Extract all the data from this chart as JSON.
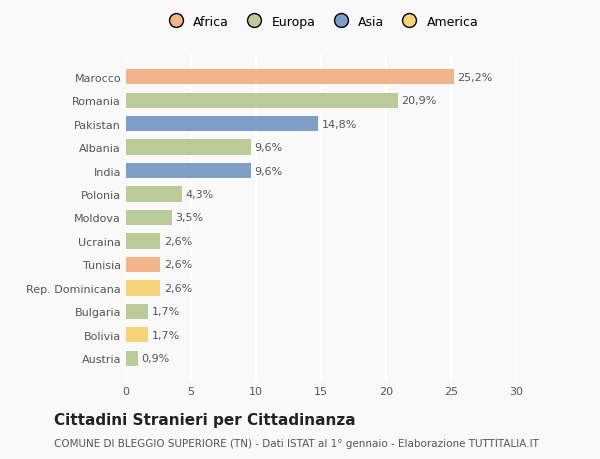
{
  "categories": [
    "Marocco",
    "Romania",
    "Pakistan",
    "Albania",
    "India",
    "Polonia",
    "Moldova",
    "Ucraina",
    "Tunisia",
    "Rep. Dominicana",
    "Bulgaria",
    "Bolivia",
    "Austria"
  ],
  "values": [
    25.2,
    20.9,
    14.8,
    9.6,
    9.6,
    4.3,
    3.5,
    2.6,
    2.6,
    2.6,
    1.7,
    1.7,
    0.9
  ],
  "labels": [
    "25,2%",
    "20,9%",
    "14,8%",
    "9,6%",
    "9,6%",
    "4,3%",
    "3,5%",
    "2,6%",
    "2,6%",
    "2,6%",
    "1,7%",
    "1,7%",
    "0,9%"
  ],
  "colors": [
    "#F2B48A",
    "#BBCA99",
    "#7E9EC8",
    "#BBCA99",
    "#7E9EC8",
    "#BBCA99",
    "#BBCA99",
    "#BBCA99",
    "#F2B48A",
    "#F5D47A",
    "#BBCA99",
    "#F5D47A",
    "#BBCA99"
  ],
  "continent_colors": {
    "Africa": "#F2B48A",
    "Europa": "#BBCA99",
    "Asia": "#7E9EC8",
    "America": "#F5D47A"
  },
  "legend_labels": [
    "Africa",
    "Europa",
    "Asia",
    "America"
  ],
  "xlim": [
    0,
    30
  ],
  "xticks": [
    0,
    5,
    10,
    15,
    20,
    25,
    30
  ],
  "title": "Cittadini Stranieri per Cittadinanza",
  "subtitle": "COMUNE DI BLEGGIO SUPERIORE (TN) - Dati ISTAT al 1° gennaio - Elaborazione TUTTITALIA.IT",
  "background_color": "#f9f9f9",
  "bar_height": 0.65,
  "label_fontsize": 8,
  "ytick_fontsize": 8,
  "xtick_fontsize": 8,
  "title_fontsize": 11,
  "subtitle_fontsize": 7.5,
  "label_color": "#555555",
  "grid_color": "#ffffff",
  "grid_lw": 1.5
}
